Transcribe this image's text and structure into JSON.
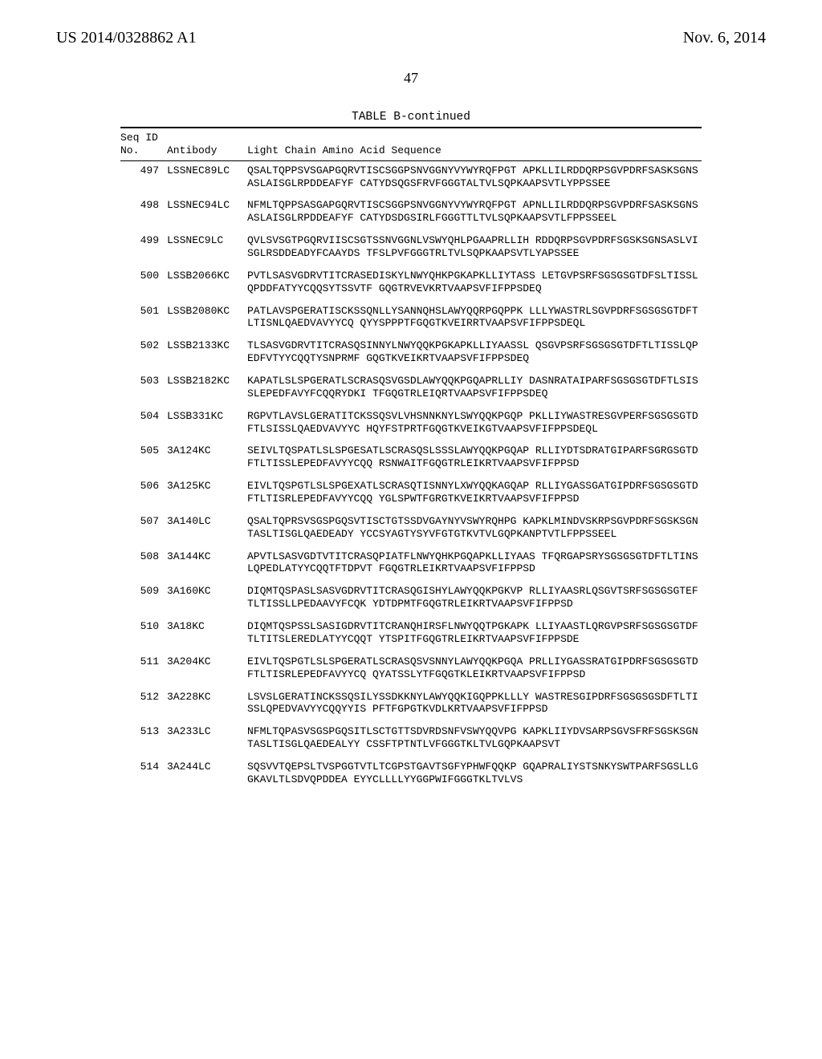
{
  "header": {
    "left": "US 2014/0328862 A1",
    "right": "Nov. 6, 2014",
    "pagenum": "47"
  },
  "table": {
    "title": "TABLE B-continued",
    "head": {
      "l1a": "Seq ID",
      "l1b": "",
      "l2a": "No.",
      "l2b": "Antibody",
      "l2c": "Light Chain Amino Acid Sequence"
    },
    "rows": [
      {
        "no": "497",
        "ab": "LSSNEC89LC",
        "seq": "QSALTQPPSVSGAPGQRVTISCSGGPSNVGGNYVYWYRQFPGT APKLLILRDDQRPSGVPDRFSASKSGNSASLAISGLRPDDEAFYF CATYDSQGSFRVFGGGTALTVLSQPKAAPSVTLYPPSSEE"
      },
      {
        "no": "498",
        "ab": "LSSNEC94LC",
        "seq": "NFMLTQPPSASGAPGQRVTISCSGGPSNVGGNYVYWYRQFPGT APNLLILRDDQRPSGVPDRFSASKSGNSASLAISGLRPDDEAFYF CATYDSDGSIRLFGGGTTLTVLSQPKAAPSVTLFPPSSEEL"
      },
      {
        "no": "499",
        "ab": "LSSNEC9LC",
        "seq": "QVLSVSGTPGQRVIISCSGTSSNVGGNLVSWYQHLPGAAPRLLIH RDDQRPSGVPDRFSGSKSGNSASLVISGLRSDDEADYFCAAYDS TFSLPVFGGGTRLTVLSQPKAAPSVTLYAPSSEE"
      },
      {
        "no": "500",
        "ab": "LSSB2066KC",
        "seq": "PVTLSASVGDRVTITCRASEDISKYLNWYQHKPGKAPKLLIYTASS LETGVPSRFSGSGSGTDFSLTISSLQPDDFATYYCQQSYTSSVTF GQGTRVEVKRTVAAPSVFIFPPSDEQ"
      },
      {
        "no": "501",
        "ab": "LSSB2080KC",
        "seq": "PATLAVSPGERATISCKSSQNLLYSANNQHSLAWYQQRPGQPPK LLLYWASTRLSGVPDRFSGSGSGTDFTLTISNLQAEDVAVYYCQ QYYSPPPTFGQGTKVEIRRTVAAPSVFIFPPSDEQL"
      },
      {
        "no": "502",
        "ab": "LSSB2133KC",
        "seq": "TLSASVGDRVTITCRASQSINNYLNWYQQKPGKAPKLLIYAASSL QSGVPSRFSGSGSGTDFTLTISSLQPEDFVTYYCQQTYSNPRMF GQGTKVEIKRTVAAPSVFIFPPSDEQ"
      },
      {
        "no": "503",
        "ab": "LSSB2182KC",
        "seq": "KAPATLSLSPGERATLSCRASQSVGSDLAWYQQKPGQAPRLLIY DASNRATAIPARFSGSGSGTDFTLSISSLEPEDFAVYFCQQRYDKI TFGQGTRLEIQRTVAAPSVFIFPPSDEQ"
      },
      {
        "no": "504",
        "ab": "LSSB331KC",
        "seq": "RGPVTLAVSLGERATITCKSSQSVLVHSNNKNYLSWYQQKPGQP PKLLIYWASTRESGVPERFSGSGSGTDFTLSISSLQAEDVAVYYC HQYFSTPRTFGQGTKVEIKGTVAAPSVFIFPPSDEQL"
      },
      {
        "no": "505",
        "ab": "3A124KC",
        "seq": "SEIVLTQSPATLSLSPGESATLSCRASQSLSSSLAWYQQKPGQAP RLLIYDTSDRATGIPARFSGRGSGTDFTLTISSLEPEDFAVYYCQQ RSNWAITFGQGTRLEIKRTVAAPSVFIFPPSD"
      },
      {
        "no": "506",
        "ab": "3A125KC",
        "seq": "EIVLTQSPGTLSLSPGEXATLSCRASQTISNNYLXWYQQKAGQAP RLLIYGASSGATGIPDRFSGSGSGTDFTLTISRLEPEDFAVYYCQQ YGLSPWTFGRGTKVEIKRTVAAPSVFIFPPSD"
      },
      {
        "no": "507",
        "ab": "3A140LC",
        "seq": "QSALTQPRSVSGSPGQSVTISCTGTSSDVGAYNYVSWYRQHPG KAPKLMINDVSKRPSGVPDRFSGSKSGNTASLTISGLQAEDEADY YCCSYAGTYSYVFGTGTKVTVLGQPKANPTVTLFPPSSEEL"
      },
      {
        "no": "508",
        "ab": "3A144KC",
        "seq": "APVTLSASVGDTVTITCRASQPIATFLNWYQHKPGQAPKLLIYAAS TFQRGAPSRYSGSGSGTDFTLTINSLQPEDLATYYCQQTFTDPVT FGQGTRLEIKRTVAAPSVFIFPPSD"
      },
      {
        "no": "509",
        "ab": "3A160KC",
        "seq": "DIQMTQSPASLSASVGDRVTITCRASQGISHYLAWYQQKPGKVP RLLIYAASRLQSGVTSRFSGSGSGTEFTLTISSLLPEDAAVYFCQK YDTDPMTFGQGTRLEIKRTVAAPSVFIFPPSD"
      },
      {
        "no": "510",
        "ab": "3A18KC",
        "seq": "DIQMTQSPSSLSASIGDRVTITCRANQHIRSFLNWYQQTPGKAPK LLIYAASTLQRGVPSRFSGSGSGTDFTLTITSLEREDLATYYCQQT YTSPITFGQGTRLEIKRTVAAPSVFIFPPSDE"
      },
      {
        "no": "511",
        "ab": "3A204KC",
        "seq": "EIVLTQSPGTLSLSPGERATLSCRASQSVSNNYLAWYQQKPGQA PRLLIYGASSRATGIPDRFSGSGSGTDFTLTISRLEPEDFAVYYCQ QYATSSLYTFGQGTKLEIKRTVAAPSVFIFPPSD"
      },
      {
        "no": "512",
        "ab": "3A228KC",
        "seq": "LSVSLGERATINCKSSQSILYSSDKKNYLAWYQQKIGQPPKLLLY WASTRESGIPDRFSGSGSGSDFTLTISSLQPEDVAVYYCQQYYIS PFTFGPGTKVDLKRTVAAPSVFIFPPSD"
      },
      {
        "no": "513",
        "ab": "3A233LC",
        "seq": "NFMLTQPASVSGSPGQSITLSCTGTTSDVRDSNFVSWYQQVPG KAPKLIIYDVSARPSGVSFRFSGSKSGNTASLTISGLQAEDEALYY CSSFTPTNTLVFGGGTKLTVLGQPKAAPSVT"
      },
      {
        "no": "514",
        "ab": "3A244LC",
        "seq": "SQSVVTQEPSLTVSPGGTVTLTCGPSTGAVTSGFYPHWFQQKP GQAPRALIYSTSNKYSWTPARFSGSLLGGKAVLTLSDVQPDDEA EYYCLLLLYYGGPWIFGGGTKLTVLVS"
      }
    ]
  }
}
